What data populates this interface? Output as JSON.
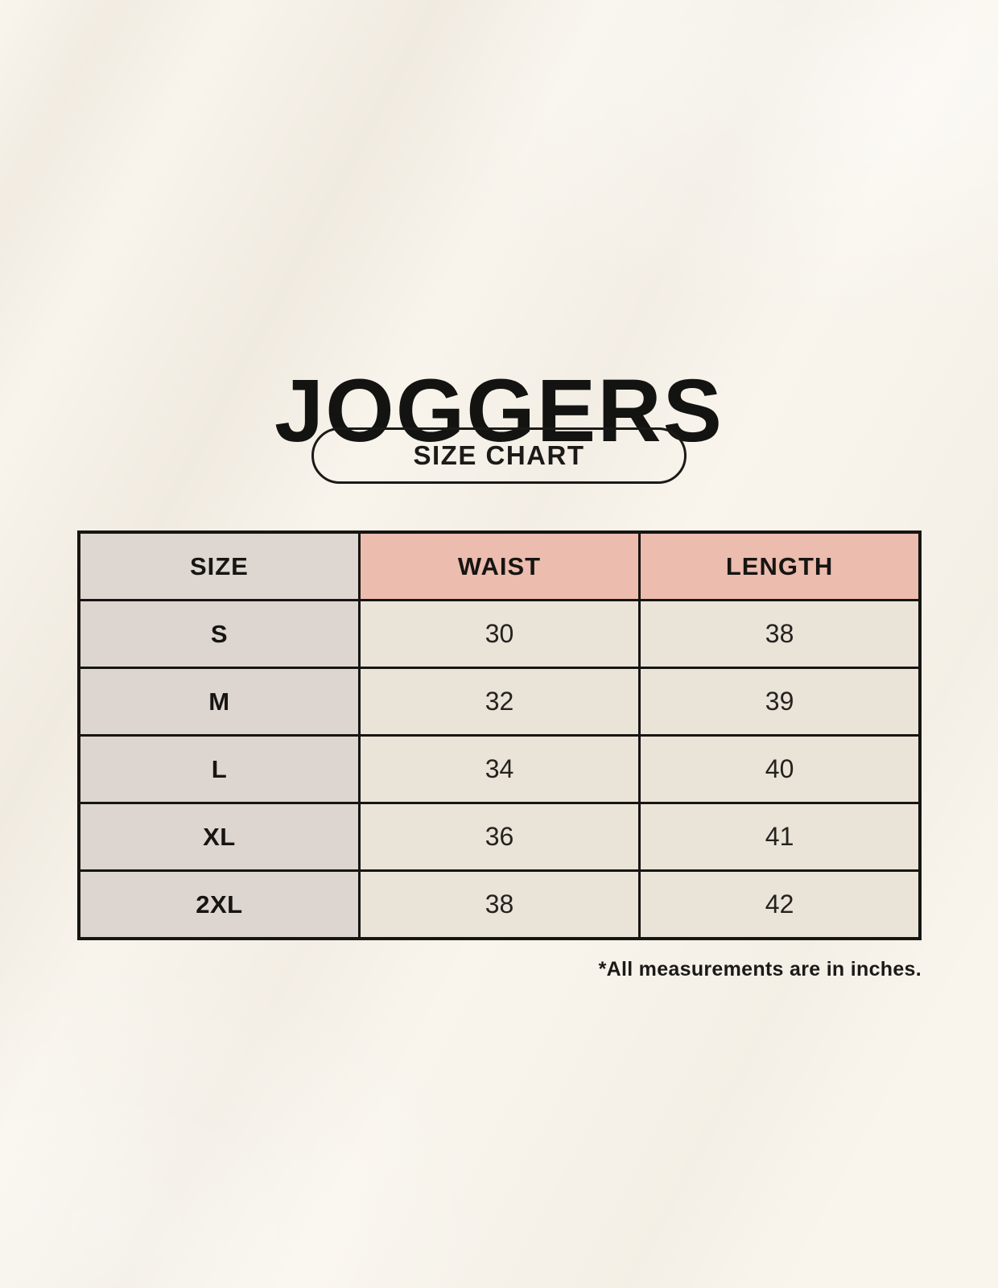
{
  "page": {
    "title": "JOGGERS",
    "badge_label": "SIZE CHART",
    "footnote": "*All measurements are in inches."
  },
  "colors": {
    "background": "#f9f5ed",
    "header_pink": "#ecbcae",
    "size_column_gray": "#ddd6d1",
    "value_cell_beige": "#eae3d8",
    "border_black": "#161512"
  },
  "chart_data": {
    "type": "table",
    "title": "JOGGERS",
    "subtitle": "SIZE CHART",
    "unit_note": "*All measurements are in inches.",
    "columns": [
      "SIZE",
      "WAIST",
      "LENGTH"
    ],
    "rows": [
      [
        "S",
        "30",
        "38"
      ],
      [
        "M",
        "32",
        "39"
      ],
      [
        "L",
        "34",
        "40"
      ],
      [
        "XL",
        "36",
        "41"
      ],
      [
        "2XL",
        "38",
        "42"
      ]
    ]
  }
}
